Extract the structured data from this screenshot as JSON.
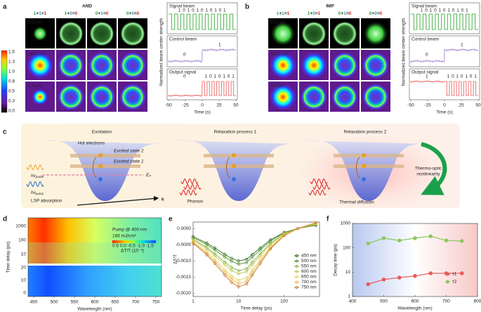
{
  "panel_a": {
    "label": "a",
    "title": "AND",
    "equations": [
      "1+1=1",
      "1+0=0",
      "0+1=0",
      "0+0=0"
    ],
    "wavelengths": [
      "532 nm",
      "1342 nm",
      "2.0 μm"
    ],
    "colorbar_ticks": [
      "1.5",
      "1.3",
      "1.0",
      "0.8",
      "0.5",
      "0.3",
      "0.0"
    ],
    "traces": [
      {
        "label": "Signal beam",
        "marks": [
          "1 0 1 0 1 0 1 0 1 0 1"
        ]
      },
      {
        "label": "Control beam",
        "marks": [
          "0",
          "1"
        ]
      },
      {
        "label": "Output signal",
        "marks": [
          "0",
          "1 0 1 0 1 0 1"
        ]
      }
    ],
    "x_ticks": [
      "-50",
      "-25",
      "0",
      "25",
      "50"
    ],
    "x_label": "Time (s)",
    "y_label": "Normalized beam center strength"
  },
  "panel_b": {
    "label": "b",
    "title": "IMP",
    "equations": [
      "1+1=1",
      "1+0=1",
      "0+1=0",
      "0+0=0"
    ],
    "wavelengths": [
      "532 nm",
      "1342 nm",
      "2.0 μm"
    ],
    "traces": [
      {
        "label": "Signal beam",
        "marks": [
          "1 0 1 0 1 0 1 0 1 0 1"
        ]
      },
      {
        "label": "Control beam",
        "marks": [
          "0",
          "1"
        ]
      },
      {
        "label": "Output signal",
        "marks": [
          "1",
          "1 0 1 0 1 0 1"
        ]
      }
    ],
    "x_ticks": [
      "-50",
      "-25",
      "0",
      "25",
      "50"
    ],
    "x_label": "Time (s)",
    "y_label": "Normalized beam center strength"
  },
  "panel_c": {
    "label": "c",
    "titles": [
      "Excitation",
      "Relaxation process 1",
      "Relaxation process 2"
    ],
    "hot_electrons": "Hot electrons",
    "excited_state_2": "Excited state 2",
    "excited_state_1": "Excited state 1",
    "fermi": {
      "main": "E",
      "sub": "F"
    },
    "probe": {
      "main": "hν",
      "sub": "probe"
    },
    "pump": {
      "main": "hν",
      "sub": "pump"
    },
    "lsp": "LSP absorption",
    "k": "k",
    "phonon": "Phonon",
    "thermal": "Thermal diffusion",
    "thermo_optic": [
      "Thermo-optic",
      "nonlinearity"
    ]
  },
  "panel_d": {
    "label": "d",
    "x_ticks": [
      "450",
      "500",
      "550",
      "600",
      "650",
      "700",
      "750"
    ],
    "y_ticks_top": [
      "1000",
      "100",
      "10"
    ],
    "y_ticks_bottom": [
      "20",
      "10",
      "0"
    ],
    "x_label": "Wavelength (nm)",
    "y_label": "Time delay (ps)",
    "pump": "Pump @ 400 nm",
    "fluence": "166 mJ/cm²",
    "colorbar_ticks": "0.5 0.0 -0.5 -1.0 -1.5",
    "colorbar_label": "ΔT/T (10⁻³)"
  },
  "chart_data": [
    {
      "type": "line",
      "panel_label": "e",
      "x_label": "Time delay (ps)",
      "y_label": "ΔT/T",
      "xlog": true,
      "x": [
        1,
        2,
        3,
        5,
        7,
        10,
        15,
        20,
        30,
        50,
        100,
        200,
        500
      ],
      "xlim": [
        1,
        600
      ],
      "xticks": [
        1,
        10,
        100
      ],
      "ylim": [
        -0.0021,
        0.0002
      ],
      "yticks": [
        {
          "value": 0,
          "label": "0.0000"
        },
        {
          "value": -0.0005,
          "label": "-0.0005"
        },
        {
          "value": -0.001,
          "label": "-0.0010"
        },
        {
          "value": -0.0015,
          "label": "-0.0015"
        },
        {
          "value": -0.002,
          "label": "-0.0020"
        }
      ],
      "series": [
        {
          "name": "450 nm",
          "color": "#2f6b1f",
          "values": [
            -0.00025,
            -0.00045,
            -0.0006,
            -0.0008,
            -0.00092,
            -0.001,
            -0.00095,
            -0.0008,
            -0.0006,
            -0.00035,
            -0.00012,
            0,
            0.0001
          ]
        },
        {
          "name": "500 nm",
          "color": "#4f8f2c",
          "values": [
            -0.00028,
            -0.0005,
            -0.00066,
            -0.00088,
            -0.00101,
            -0.0011,
            -0.00105,
            -0.00088,
            -0.00066,
            -0.00039,
            -0.00013,
            0,
            0.00011
          ]
        },
        {
          "name": "550 nm",
          "color": "#84b23e",
          "values": [
            -0.00033,
            -0.00059,
            -0.00078,
            -0.00104,
            -0.0012,
            -0.0013,
            -0.00124,
            -0.00104,
            -0.00078,
            -0.00046,
            -0.00016,
            0,
            0.00013
          ]
        },
        {
          "name": "600 nm",
          "color": "#bcc94b",
          "values": [
            -0.00035,
            -0.00063,
            -0.00084,
            -0.00112,
            -0.00129,
            -0.0014,
            -0.00133,
            -0.00112,
            -0.00084,
            -0.00049,
            -0.00017,
            0,
            0.00014
          ]
        },
        {
          "name": "650 nm",
          "color": "#e6d35a",
          "values": [
            -0.0004,
            -0.00072,
            -0.00096,
            -0.00128,
            -0.00147,
            -0.0016,
            -0.00152,
            -0.00128,
            -0.00096,
            -0.00056,
            -0.00019,
            0,
            0.00016
          ]
        },
        {
          "name": "700 nm",
          "color": "#eeb444",
          "values": [
            -0.00043,
            -0.00077,
            -0.00102,
            -0.00136,
            -0.00156,
            -0.0017,
            -0.00162,
            -0.00136,
            -0.00102,
            -0.0006,
            -0.0002,
            0,
            0.00017
          ]
        },
        {
          "name": "750 nm",
          "color": "#c9772a",
          "values": [
            -0.00045,
            -0.00081,
            -0.00108,
            -0.00144,
            -0.00166,
            -0.0018,
            -0.00171,
            -0.00144,
            -0.00108,
            -0.00063,
            -0.00022,
            0,
            0.00018
          ]
        }
      ]
    },
    {
      "type": "line",
      "panel_label": "f",
      "x_label": "Wavelength (nm)",
      "y_label": "Decay time (ps)",
      "ylog": true,
      "x": [
        450,
        500,
        550,
        600,
        650,
        700,
        750
      ],
      "xlim": [
        400,
        800
      ],
      "xticks": [
        400,
        500,
        600,
        700,
        800
      ],
      "ylim": [
        1,
        1000
      ],
      "yticks": [
        1,
        10,
        100,
        1000
      ],
      "series": [
        {
          "name": "τ1",
          "color": "#e85a5a",
          "values": [
            3.2,
            5,
            6,
            7,
            9,
            9,
            9
          ]
        },
        {
          "name": "τ2",
          "color": "#8dc860",
          "values": [
            150,
            250,
            200,
            250,
            300,
            200,
            190
          ]
        }
      ]
    }
  ]
}
